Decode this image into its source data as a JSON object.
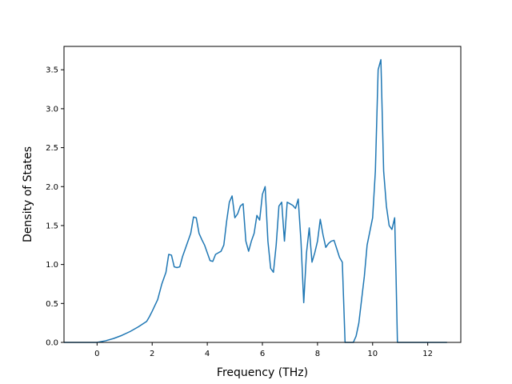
{
  "chart_data": {
    "type": "line",
    "title": "",
    "xlabel": "Frequency (THz)",
    "ylabel": "Density of States",
    "xlim": [
      -1.2,
      13.2
    ],
    "ylim": [
      0.0,
      3.8
    ],
    "x_ticks": [
      0,
      2,
      4,
      6,
      8,
      10,
      12
    ],
    "y_ticks": [
      0.0,
      0.5,
      1.0,
      1.5,
      2.0,
      2.5,
      3.0,
      3.5
    ],
    "x_tick_labels": [
      "0",
      "2",
      "4",
      "6",
      "8",
      "10",
      "12"
    ],
    "y_tick_labels": [
      "0.0",
      "0.5",
      "1.0",
      "1.5",
      "2.0",
      "2.5",
      "3.0",
      "3.5"
    ],
    "grid": false,
    "series": [
      {
        "color": "#1f77b4",
        "x": [
          -1.2,
          0.0,
          0.3,
          0.6,
          0.9,
          1.2,
          1.5,
          1.8,
          1.9,
          2.0,
          2.2,
          2.35,
          2.5,
          2.6,
          2.7,
          2.8,
          2.9,
          3.0,
          3.1,
          3.2,
          3.3,
          3.4,
          3.5,
          3.6,
          3.7,
          3.8,
          3.9,
          4.0,
          4.1,
          4.2,
          4.3,
          4.4,
          4.5,
          4.6,
          4.7,
          4.8,
          4.9,
          5.0,
          5.1,
          5.2,
          5.3,
          5.4,
          5.5,
          5.6,
          5.7,
          5.8,
          5.9,
          6.0,
          6.1,
          6.2,
          6.3,
          6.4,
          6.5,
          6.6,
          6.7,
          6.8,
          6.9,
          7.0,
          7.1,
          7.2,
          7.3,
          7.4,
          7.5,
          7.6,
          7.7,
          7.8,
          7.9,
          8.0,
          8.1,
          8.2,
          8.3,
          8.4,
          8.5,
          8.6,
          8.7,
          8.8,
          8.9,
          9.0,
          9.1,
          9.2,
          9.3,
          9.4,
          9.5,
          9.6,
          9.7,
          9.8,
          10.0,
          10.1,
          10.2,
          10.3,
          10.4,
          10.5,
          10.6,
          10.7,
          10.8,
          10.85,
          10.9,
          10.95,
          11.0,
          11.1,
          11.2,
          11.3,
          11.4,
          11.5,
          11.6,
          11.7,
          12.0,
          12.7
        ],
        "y": [
          0.0,
          0.0,
          0.02,
          0.05,
          0.09,
          0.14,
          0.2,
          0.27,
          0.33,
          0.4,
          0.55,
          0.75,
          0.9,
          1.13,
          1.12,
          0.97,
          0.96,
          0.97,
          1.1,
          1.2,
          1.3,
          1.4,
          1.61,
          1.6,
          1.4,
          1.32,
          1.25,
          1.15,
          1.05,
          1.04,
          1.13,
          1.15,
          1.17,
          1.25,
          1.55,
          1.8,
          1.88,
          1.6,
          1.65,
          1.75,
          1.78,
          1.3,
          1.17,
          1.3,
          1.4,
          1.63,
          1.57,
          1.9,
          2.0,
          1.3,
          0.95,
          0.9,
          1.25,
          1.75,
          1.8,
          1.3,
          1.8,
          1.78,
          1.76,
          1.72,
          1.84,
          1.3,
          0.51,
          1.15,
          1.47,
          1.03,
          1.15,
          1.3,
          1.58,
          1.38,
          1.22,
          1.27,
          1.3,
          1.31,
          1.2,
          1.09,
          1.03,
          0.0,
          0.0,
          0.0,
          0.0,
          0.08,
          0.25,
          0.55,
          0.85,
          1.25,
          1.6,
          2.2,
          3.5,
          3.63,
          2.2,
          1.75,
          1.5,
          1.45,
          1.6,
          0.85,
          0.0,
          0.0,
          0.0,
          0.0,
          0.0,
          0.0,
          0.0,
          0.0,
          0.0,
          0.0,
          0.0,
          0.0
        ]
      }
    ]
  }
}
